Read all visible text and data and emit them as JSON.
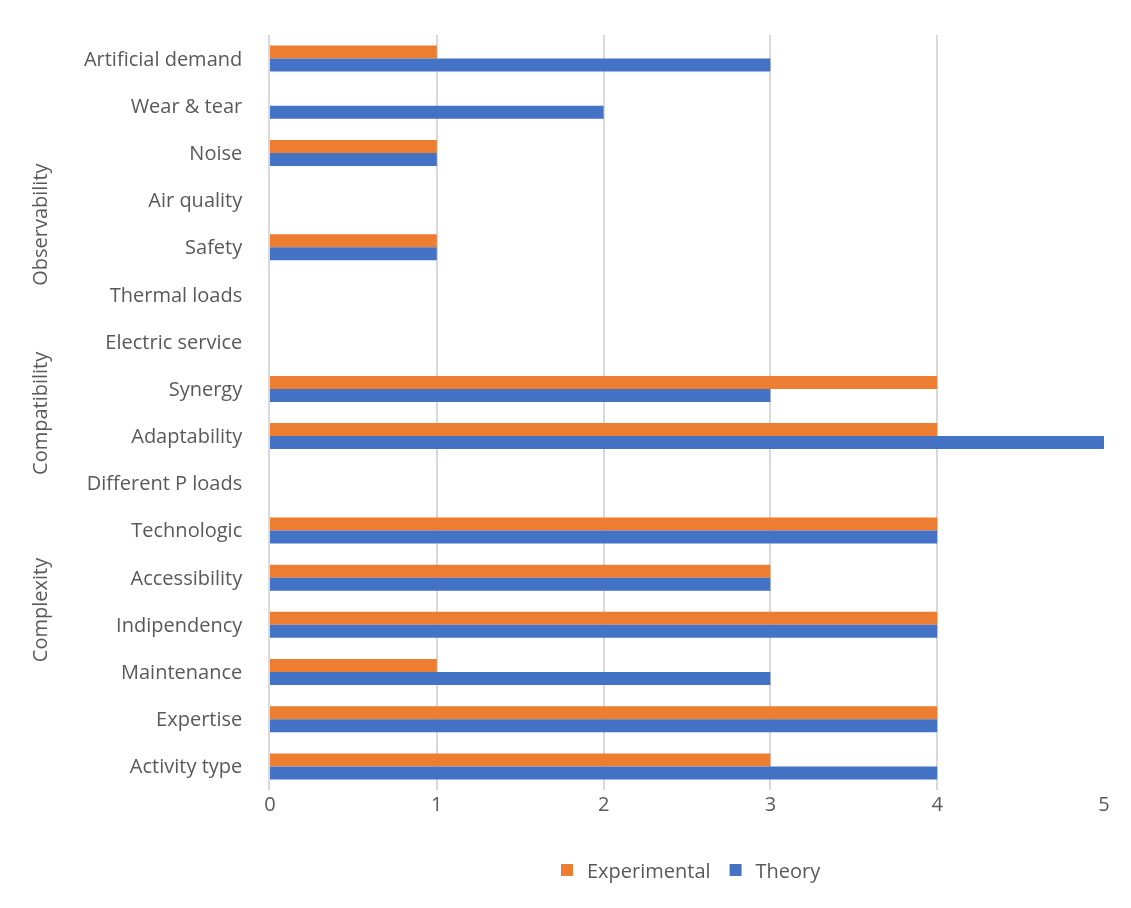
{
  "chart_data": {
    "type": "bar",
    "orientation": "horizontal",
    "categories": [
      "Artificial demand",
      "Wear & tear",
      "Noise",
      "Air quality",
      "Safety",
      "Thermal loads",
      "Electric service",
      "Synergy",
      "Adaptability",
      "Different P loads",
      "Technologic",
      "Accessibility",
      "Indipendency",
      "Maintenance",
      "Expertise",
      "Activity type"
    ],
    "series": [
      {
        "name": "Experimental",
        "color": "#ed7d31",
        "values": [
          1,
          0,
          1,
          0,
          1,
          0,
          0,
          4,
          4,
          0,
          4,
          3,
          4,
          1,
          4,
          3
        ]
      },
      {
        "name": "Theory",
        "color": "#4472c4",
        "values": [
          3,
          2,
          1,
          0,
          1,
          0,
          0,
          3,
          5,
          0,
          4,
          3,
          4,
          3,
          4,
          4
        ]
      }
    ],
    "xlim": [
      0,
      5
    ],
    "xticks": [
      0,
      1,
      2,
      3,
      4,
      5
    ],
    "grid": "x",
    "legend": "bottom",
    "annotations": [
      "Observability",
      "Compatibility",
      "Complexity"
    ]
  }
}
